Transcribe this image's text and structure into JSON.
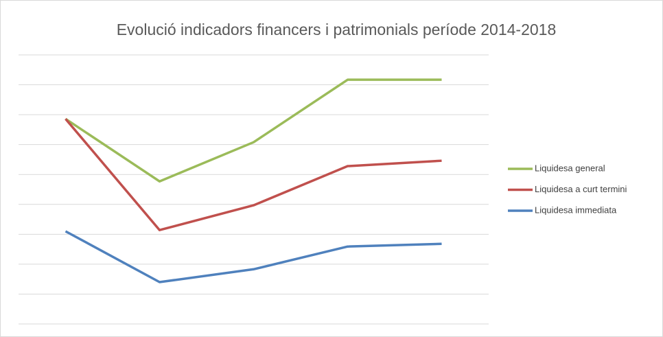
{
  "chart_data": {
    "type": "line",
    "title": "Evolució indicadors financers i patrimonials període 2014-2018",
    "categories": [
      null,
      null,
      null,
      null,
      null
    ],
    "series": [
      {
        "name": "Liquidesa general",
        "color": "#9bbb59",
        "values": [
          6.86,
          4.77,
          6.08,
          8.17,
          8.17
        ]
      },
      {
        "name": "Liquidesa a curt termini",
        "color": "#c0504d",
        "values": [
          6.86,
          3.14,
          3.97,
          5.28,
          5.46
        ]
      },
      {
        "name": "Liquidesa immediata",
        "color": "#4f81bd",
        "values": [
          3.1,
          1.4,
          1.83,
          2.59,
          2.68
        ]
      }
    ],
    "ylim": [
      0,
      9
    ],
    "yticks": [
      0,
      1,
      2,
      3,
      4,
      5,
      6,
      7,
      8,
      9
    ],
    "grid": true,
    "legend": "right"
  }
}
